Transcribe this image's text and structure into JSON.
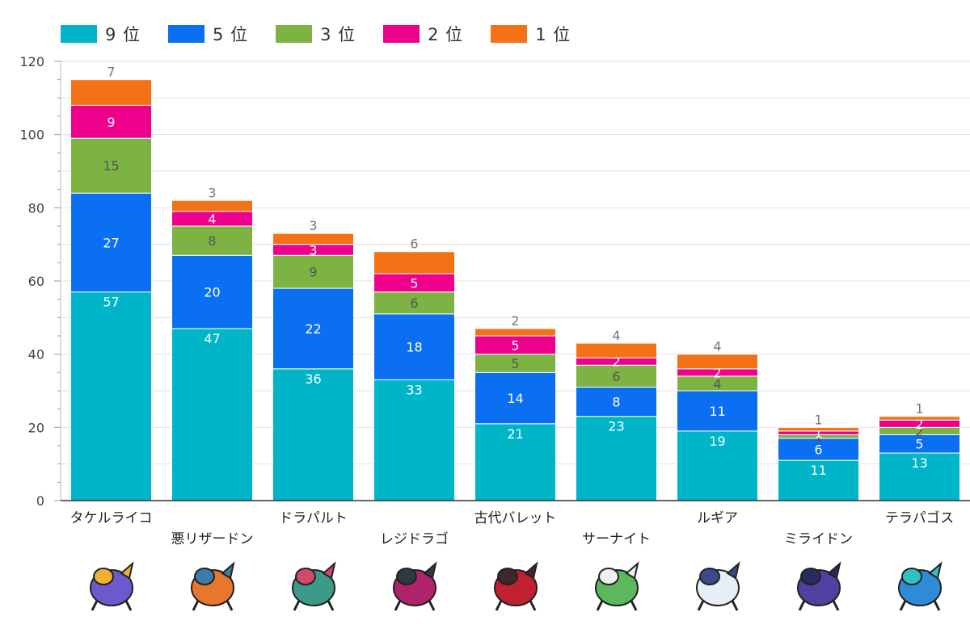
{
  "chart_data": {
    "type": "bar",
    "stacked": true,
    "title": "",
    "xlabel": "",
    "ylabel": "",
    "ylim": [
      0,
      120
    ],
    "yticks": [
      0,
      20,
      40,
      60,
      80,
      100,
      120
    ],
    "legend_position": "top-left",
    "grid": true,
    "categories": [
      "タケルライコ",
      "悪リザードン",
      "ドラパルト",
      "レジドラゴ",
      "古代バレット",
      "サーナイト",
      "ルギア",
      "ミライドン",
      "テラパゴス"
    ],
    "series": [
      {
        "name": "9 位",
        "color": "#00b5c8",
        "values": [
          57,
          47,
          36,
          33,
          21,
          23,
          19,
          11,
          13
        ],
        "label_color": "#ffffff"
      },
      {
        "name": "5 位",
        "color": "#0a6ff0",
        "values": [
          27,
          20,
          22,
          18,
          14,
          8,
          11,
          6,
          5
        ],
        "label_color": "#ffffff"
      },
      {
        "name": "3 位",
        "color": "#7cb342",
        "values": [
          15,
          8,
          9,
          6,
          5,
          6,
          4,
          1,
          2
        ],
        "label_color": "#555555"
      },
      {
        "name": "2 位",
        "color": "#ec008c",
        "values": [
          9,
          4,
          3,
          5,
          5,
          2,
          2,
          1,
          2
        ],
        "label_color": "#ffffff"
      },
      {
        "name": "1 位",
        "color": "#f47216",
        "values": [
          7,
          3,
          3,
          6,
          2,
          4,
          4,
          1,
          1
        ],
        "label_color": "#555555"
      }
    ],
    "label_layout": [
      [
        "9 位",
        "5 位",
        "3 位",
        "2 位",
        "1 位"
      ]
    ]
  },
  "sprites": [
    {
      "name": "raging-bolt-icon",
      "color1": "#6a5acd",
      "color2": "#f0b030"
    },
    {
      "name": "charizard-icon",
      "color1": "#e8762c",
      "color2": "#3a7ea8"
    },
    {
      "name": "dragapult-icon",
      "color1": "#3c9a8a",
      "color2": "#d04a6a"
    },
    {
      "name": "regidrago-icon",
      "color1": "#b0226a",
      "color2": "#2e3a40"
    },
    {
      "name": "roaring-moon-icon",
      "color1": "#c02030",
      "color2": "#40282a"
    },
    {
      "name": "gardevoir-icon",
      "color1": "#5cb85c",
      "color2": "#f0f0f0"
    },
    {
      "name": "lugia-icon",
      "color1": "#e8eef8",
      "color2": "#3a4a8a"
    },
    {
      "name": "miraidon-icon",
      "color1": "#5040a0",
      "color2": "#2a2a60"
    },
    {
      "name": "terapagos-icon",
      "color1": "#2e8bd8",
      "color2": "#30c0c0"
    }
  ]
}
